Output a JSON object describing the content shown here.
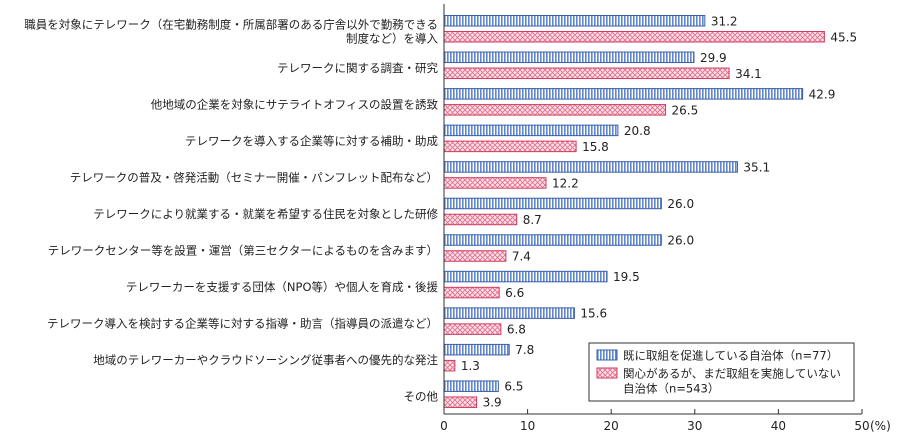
{
  "chart_data": {
    "type": "bar",
    "orientation": "horizontal",
    "categories": [
      [
        "職員を対象にテレワーク（在宅勤務制度・所属部署のある庁舎以外で勤務できる",
        "制度など）を導入"
      ],
      [
        "テレワークに関する調査・研究"
      ],
      [
        "他地域の企業を対象にサテライトオフィスの設置を誘致"
      ],
      [
        "テレワークを導入する企業等に対する補助・助成"
      ],
      [
        "テレワークの普及・啓発活動（セミナー開催・パンフレット配布など）"
      ],
      [
        "テレワークにより就業する・就業を希望する住民を対象とした研修"
      ],
      [
        "テレワークセンター等を設置・運営（第三セクターによるものを含みます）"
      ],
      [
        "テレワーカーを支援する団体（NPO等）や個人を育成・後援"
      ],
      [
        "テレワーク導入を検討する企業等に対する指導・助言（指導員の派遣など）"
      ],
      [
        "地域のテレワーカーやクラウドソーシング従事者への優先的な発注"
      ],
      [
        "その他"
      ]
    ],
    "series": [
      {
        "name": "既に取組を促進している自治体（n=77）",
        "legend_lines": [
          "既に取組を促進している自治体（n=77）"
        ],
        "values": [
          31.2,
          29.9,
          42.9,
          20.8,
          35.1,
          26.0,
          26.0,
          19.5,
          15.6,
          7.8,
          6.5
        ],
        "value_labels": [
          "31.2",
          "29.9",
          "42.9",
          "20.8",
          "35.1",
          "26.0",
          "26.0",
          "19.5",
          "15.6",
          "7.8",
          "6.5"
        ],
        "color": "#9db8e6",
        "stroke": "#3a5fa8",
        "pattern": "vertical-stripes"
      },
      {
        "name": "関心があるが、まだ取組を実施していない自治体（n=543）",
        "legend_lines": [
          "関心があるが、まだ取組を実施していない",
          "自治体（n=543）"
        ],
        "values": [
          45.5,
          34.1,
          26.5,
          15.8,
          12.2,
          8.7,
          7.4,
          6.6,
          6.8,
          1.3,
          3.9
        ],
        "value_labels": [
          "45.5",
          "34.1",
          "26.5",
          "15.8",
          "12.2",
          "8.7",
          "7.4",
          "6.6",
          "6.8",
          "1.3",
          "3.9"
        ],
        "color": "#f7c4cf",
        "stroke": "#d23a5e",
        "pattern": "crosshatch"
      }
    ],
    "x_ticks": [
      "0",
      "10",
      "20",
      "30",
      "40",
      "50"
    ],
    "xlim": [
      0,
      50
    ],
    "x_unit": "(%)",
    "grid": false,
    "legend_position": "bottom-right"
  }
}
